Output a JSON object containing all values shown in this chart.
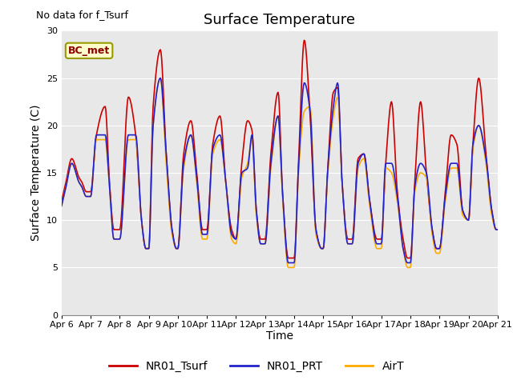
{
  "title": "Surface Temperature",
  "ylabel": "Surface Temperature (C)",
  "xlabel": "Time",
  "no_data_label": "No data for f_Tsurf",
  "bc_met_label": "BC_met",
  "ylim": [
    0,
    30
  ],
  "yticks": [
    0,
    5,
    10,
    15,
    20,
    25,
    30
  ],
  "xtick_labels": [
    "Apr 6",
    "Apr 7",
    "Apr 8",
    "Apr 9",
    "Apr 10",
    "Apr 11",
    "Apr 12",
    "Apr 13",
    "Apr 14",
    "Apr 15",
    "Apr 16",
    "Apr 17",
    "Apr 18",
    "Apr 19",
    "Apr 20",
    "Apr 21"
  ],
  "legend_labels": [
    "NR01_Tsurf",
    "NR01_PRT",
    "AirT"
  ],
  "line_colors": [
    "#cc0000",
    "#2222cc",
    "#ffaa00"
  ],
  "bg_color": "#e8e8e8",
  "fig_color": "#ffffff",
  "title_fontsize": 13,
  "axis_fontsize": 10,
  "tick_fontsize": 8,
  "legend_fontsize": 10,
  "line_width": 1.2,
  "no_data_fontsize": 9,
  "bcmet_fontsize": 9
}
